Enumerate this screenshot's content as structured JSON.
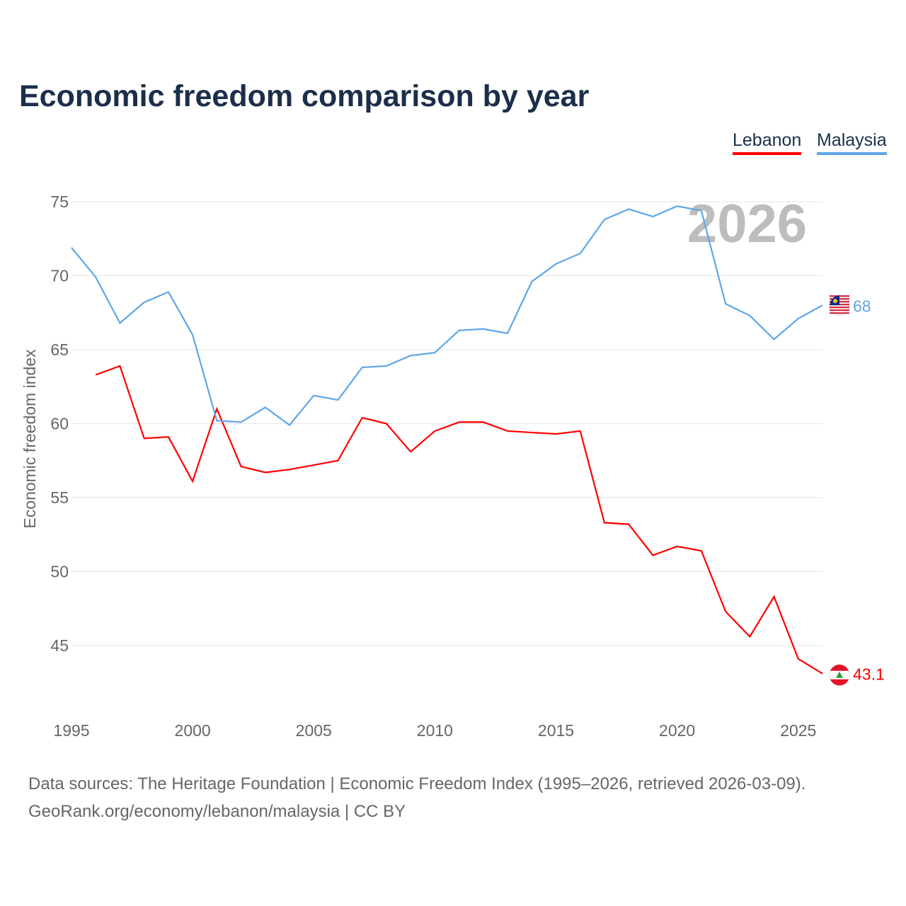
{
  "chart_data": {
    "type": "line",
    "title": "Economic freedom comparison by year",
    "ylabel": "Economic freedom index",
    "xlabel": "",
    "xlim": [
      1995,
      2026
    ],
    "ylim": [
      41,
      76
    ],
    "x_ticks": [
      "1995",
      "2000",
      "2005",
      "2010",
      "2015",
      "2020",
      "2025"
    ],
    "y_ticks": [
      "45",
      "50",
      "55",
      "60",
      "65",
      "70",
      "75"
    ],
    "grid": true,
    "legend_position": "top-right",
    "year_watermark": "2026",
    "series": [
      {
        "name": "Lebanon",
        "color": "#ff0000",
        "end_label": "43.1",
        "x": [
          1996,
          1997,
          1998,
          1999,
          2000,
          2001,
          2002,
          2003,
          2004,
          2005,
          2006,
          2007,
          2008,
          2009,
          2010,
          2011,
          2012,
          2013,
          2014,
          2015,
          2016,
          2017,
          2018,
          2019,
          2020,
          2021,
          2022,
          2023,
          2024,
          2025,
          2026
        ],
        "values": [
          63.3,
          63.9,
          59.0,
          59.1,
          56.1,
          61.0,
          57.1,
          56.7,
          56.9,
          57.2,
          57.5,
          60.4,
          60.0,
          58.1,
          59.5,
          60.1,
          60.1,
          59.5,
          59.4,
          59.3,
          59.5,
          53.3,
          53.2,
          51.1,
          51.7,
          51.4,
          47.3,
          45.6,
          48.3,
          44.1,
          43.1
        ]
      },
      {
        "name": "Malaysia",
        "color": "#5fa6e8",
        "end_label": "68",
        "x": [
          1995,
          1996,
          1997,
          1998,
          1999,
          2000,
          2001,
          2002,
          2003,
          2004,
          2005,
          2006,
          2007,
          2008,
          2009,
          2010,
          2011,
          2012,
          2013,
          2014,
          2015,
          2016,
          2017,
          2018,
          2019,
          2020,
          2021,
          2022,
          2023,
          2024,
          2025,
          2026
        ],
        "values": [
          71.9,
          69.9,
          66.8,
          68.2,
          68.9,
          66.0,
          60.2,
          60.1,
          61.1,
          59.9,
          61.9,
          61.6,
          63.8,
          63.9,
          64.6,
          64.8,
          66.3,
          66.4,
          66.1,
          69.6,
          70.8,
          71.5,
          73.8,
          74.5,
          74.0,
          74.7,
          74.4,
          68.1,
          67.3,
          65.7,
          67.1,
          68.0
        ]
      }
    ]
  },
  "footer": {
    "line1": "Data sources: The Heritage Foundation | Economic Freedom Index (1995–2026, retrieved 2026-03-09).",
    "line2": "GeoRank.org/economy/lebanon/malaysia | CC BY"
  }
}
